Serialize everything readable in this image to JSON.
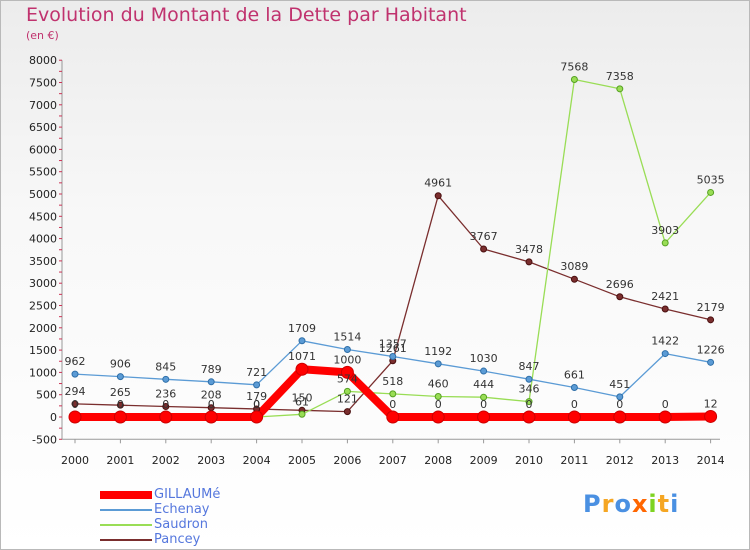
{
  "title": "Evolution du Montant de la Dette par Habitant",
  "unit": "(en €)",
  "logo": "Proxiti",
  "chart_data": {
    "type": "line",
    "title": "Evolution du Montant de la Dette par Habitant",
    "subtitle": "(en €)",
    "x": [
      "2000",
      "2001",
      "2002",
      "2003",
      "2004",
      "2005",
      "2006",
      "2007",
      "2008",
      "2009",
      "2010",
      "2011",
      "2012",
      "2013",
      "2014"
    ],
    "ylim": [
      -500,
      8000
    ],
    "yticks": [
      -500,
      0,
      500,
      1000,
      1500,
      2000,
      2500,
      3000,
      3500,
      4000,
      4500,
      5000,
      5500,
      6000,
      6500,
      7000,
      7500,
      8000
    ],
    "grid": false,
    "legend_position": "bottom-left",
    "series": [
      {
        "name": "GILLAUMé",
        "color": "#ff0000",
        "values": [
          0,
          0,
          0,
          0,
          0,
          1071,
          1000,
          0,
          0,
          0,
          0,
          0,
          0,
          0,
          12
        ],
        "labels": [
          "0",
          "0",
          "0",
          "0",
          "0",
          "1071",
          "1000",
          "0",
          "0",
          "0",
          "0",
          "0",
          "0",
          "0",
          "12"
        ]
      },
      {
        "name": "Echenay",
        "color": "#5b9bd5",
        "values": [
          962,
          906,
          845,
          789,
          721,
          1709,
          1514,
          1357,
          1192,
          1030,
          847,
          661,
          451,
          1422,
          1226
        ],
        "labels": [
          "962",
          "906",
          "845",
          "789",
          "721",
          "1709",
          "1514",
          "1357",
          "1192",
          "1030",
          "847",
          "661",
          "451",
          "1422",
          "1226"
        ]
      },
      {
        "name": "Saudron",
        "color": "#99dd55",
        "values": [
          null,
          null,
          null,
          null,
          0,
          61,
          574,
          518,
          460,
          444,
          346,
          7568,
          7358,
          3903,
          5035
        ],
        "labels": [
          null,
          null,
          null,
          null,
          "0",
          "61",
          "574",
          "518",
          "460",
          "444",
          "346",
          "7568",
          "7358",
          "3903",
          "5035"
        ]
      },
      {
        "name": "Pancey",
        "color": "#7a2e2e",
        "values": [
          294,
          265,
          236,
          208,
          179,
          150,
          121,
          1261,
          4961,
          3767,
          3478,
          3089,
          2696,
          2421,
          2179
        ],
        "labels": [
          "294",
          "265",
          "236",
          "208",
          "179",
          "150",
          "121",
          "1261",
          "4961",
          "3767",
          "3478",
          "3089",
          "2696",
          "2421",
          "2179"
        ]
      }
    ]
  }
}
